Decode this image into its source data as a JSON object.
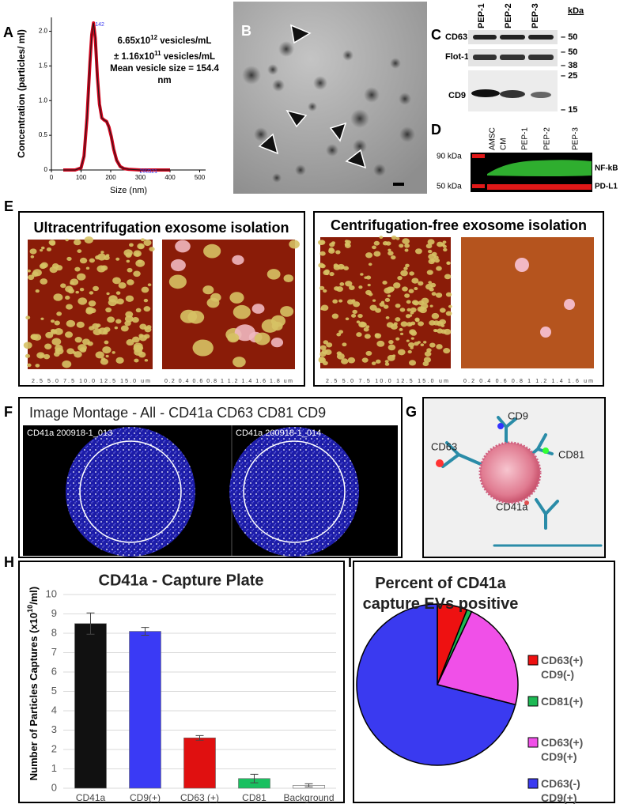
{
  "panel_labels": [
    "A",
    "B",
    "C",
    "D",
    "E",
    "F",
    "G",
    "H",
    "I"
  ],
  "panel_c": {
    "lanes": [
      "PEP-1",
      "PEP-2",
      "PEP-3"
    ],
    "unit": "kDa",
    "rows": [
      "CD63",
      "Flot-1",
      "CD9"
    ],
    "markers": [
      "50",
      "50",
      "38",
      "25",
      "15"
    ]
  },
  "panel_d": {
    "lanes": [
      "AMSC",
      "CM",
      "PEP-1",
      "PEP-2",
      "PEP-3"
    ],
    "markers": [
      "90 kDa",
      "50 kDa"
    ],
    "bands": [
      "NF-kB",
      "PD-L1"
    ]
  },
  "panel_e": {
    "titles": [
      "Ultracentrifugation exosome isolation",
      "Centrifugation-free exosome isolation"
    ],
    "axes": [
      "2.5    5.0    7.5    10.0    12.5    15.0 um",
      "0.2  0.4  0.6  0.8  1  1.2  1.4  1.6  1.8 um",
      "2.5    5.0    7.5    10.0    12.5    15.0 um",
      "0.2  0.4  0.6  0.8  1  1.2  1.4  1.6 um"
    ]
  },
  "panel_f": {
    "title": "Image Montage - All - CD41a CD63 CD81 CD9",
    "wells": [
      "CD41a 200918-1_013",
      "CD41a 200918-1_014"
    ]
  },
  "panel_g": {
    "labels": [
      "CD63",
      "CD9",
      "CD81",
      "CD41a"
    ]
  },
  "chart_data": [
    {
      "type": "line",
      "ylabel": "Concentration (particles/ ml)",
      "xlabel": "Size (nm)",
      "x": [
        40,
        80,
        100,
        110,
        120,
        130,
        136,
        142,
        148,
        155,
        162,
        170,
        178,
        186,
        194,
        202,
        210,
        220,
        232,
        245,
        260,
        300,
        340,
        400
      ],
      "series": [
        {
          "color": "#d0021b",
          "edge_color": "#1a1a1a",
          "values": [
            0,
            0,
            0.03,
            0.2,
            0.75,
            1.55,
            1.95,
            2.12,
            1.9,
            1.35,
            0.95,
            0.75,
            0.72,
            0.7,
            0.62,
            0.48,
            0.3,
            0.14,
            0.05,
            0.02,
            0.01,
            0,
            0,
            0
          ]
        }
      ],
      "xlim": [
        0,
        520
      ],
      "xticks": [
        0,
        100,
        200,
        300,
        400,
        500
      ],
      "ylim": [
        0,
        2.2
      ],
      "yticks": [
        0,
        0.5,
        {
          "value": 1,
          "label": "1.0"
        },
        1.5,
        {
          "value": 2,
          "label": "2.0"
        }
      ],
      "annotations": [
        {
          "x": 142,
          "text": "142"
        },
        {
          "x": 292,
          "text": "292"
        },
        {
          "x": 321,
          "text": "321"
        }
      ],
      "annotation_color": "#3a3af0",
      "stats": [
        [
          "6.65x10",
          "12",
          " vesicles/mL"
        ],
        [
          "± 1.16x10",
          "11",
          " vesicles/mL"
        ],
        [
          "Mean vesicle size = 154.4 nm"
        ]
      ]
    },
    {
      "type": "bar",
      "title": "CD41a - Capture Plate",
      "ylabel_parts": [
        "Number of Particles Captures (x10",
        "10",
        "/ml)"
      ],
      "categories": [
        "CD41a",
        "CD9(+)",
        "CD63 (+)",
        "CD81",
        "Background"
      ],
      "values": [
        8.5,
        8.1,
        2.6,
        0.5,
        0.15
      ],
      "errors": [
        0.55,
        0.2,
        0.12,
        0.22,
        0.08
      ],
      "colors": [
        "#111111",
        "#3a3af5",
        "#e01010",
        "#19c060",
        "#ffffff"
      ],
      "ylim": [
        0,
        10
      ],
      "yticks": [
        0,
        1,
        2,
        3,
        4,
        5,
        6,
        7,
        8,
        9,
        10
      ],
      "grid": true
    },
    {
      "type": "pie",
      "title": "Percent of CD41a capture EVs positive",
      "categories": [
        "CD63(+) CD9(-)",
        "CD81(+)",
        "CD63(+) CD9(+)",
        "CD63(-) CD9(+)"
      ],
      "values": [
        6,
        1,
        22,
        71
      ],
      "colors": [
        "#ee1111",
        "#1db954",
        "#f050e8",
        "#3a3af0"
      ],
      "legend": "right"
    }
  ]
}
